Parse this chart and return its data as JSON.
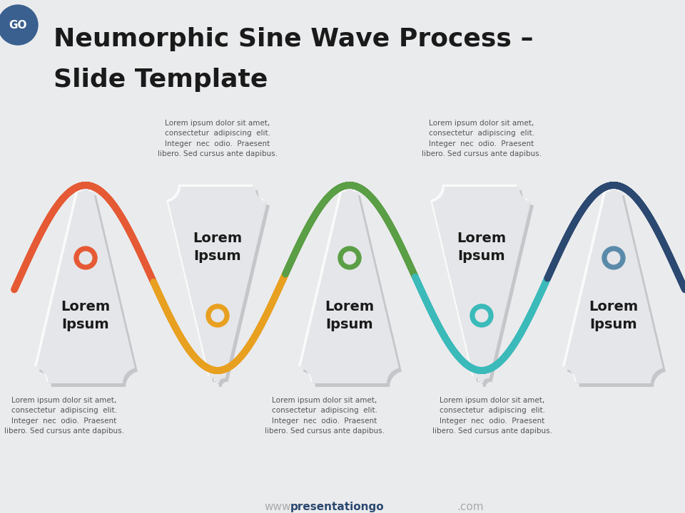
{
  "title_line1": "Neumorphic Sine Wave Process –",
  "title_line2": "Slide Template",
  "bg_color": "#EAEBED",
  "title_color": "#1a1a1a",
  "title_fontsize": 26,
  "wave_colors": [
    "#E55A35",
    "#E8A020",
    "#5A9E45",
    "#3BBABA",
    "#2B4870"
  ],
  "icon_colors": [
    "#E55A35",
    "#E8A020",
    "#5A9E45",
    "#3BBABA",
    "#5a8aaa"
  ],
  "card_color": "#E5E6E9",
  "card_shadow_dark": "#C5C6C9",
  "card_shadow_light": "#FAFAFA",
  "wave_linewidth": 7,
  "lorem_text": "Lorem ipsum dolor sit amet,\nconsectetur  adipiscing  elit.\nInteger  nec  odio.  Praesent\nlibero. Sed cursus ante dapibus.",
  "watermark_www_color": "#aaaaaa",
  "watermark_main_color": "#2B4870",
  "watermark_com_color": "#aaaaaa"
}
